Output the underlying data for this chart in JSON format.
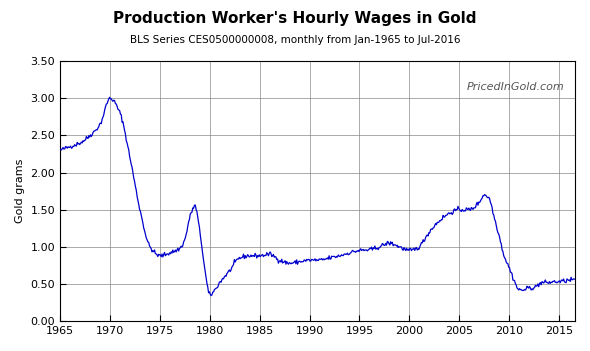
{
  "title": "Production Worker's Hourly Wages in Gold",
  "subtitle": "BLS Series CES0500000008, monthly from Jan-1965 to Jul-2016",
  "ylabel": "Gold grams",
  "watermark": "PricedInGold.com",
  "line_color": "#0000CD",
  "bg_color": "#FFFFFF",
  "grid_color": "#000000",
  "xlim": [
    1965,
    2016.6
  ],
  "ylim": [
    0.0,
    3.5
  ],
  "xticks": [
    1965,
    1970,
    1975,
    1980,
    1985,
    1990,
    1995,
    2000,
    2005,
    2010,
    2015
  ],
  "yticks": [
    0.0,
    0.5,
    1.0,
    1.5,
    2.0,
    2.5,
    3.0,
    3.5
  ]
}
